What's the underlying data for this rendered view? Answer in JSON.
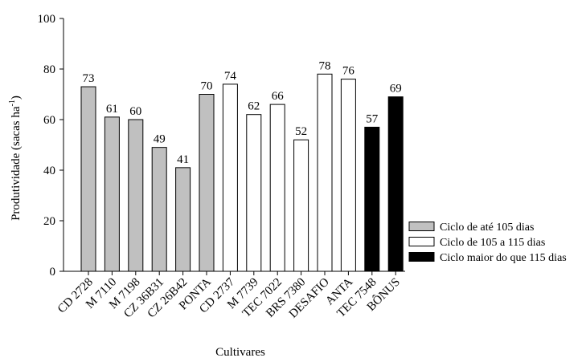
{
  "chart_data": {
    "type": "bar",
    "xlabel": "Cultivares",
    "ylabel": "Produtividade (sacas ha",
    "ylabel_sup": "-1",
    "ylabel_close": ")",
    "ylim": [
      0,
      100
    ],
    "yticks": [
      "0",
      "20",
      "40",
      "60",
      "80",
      "100"
    ],
    "categories": [
      "CD 2728",
      "M 7110",
      "M 7198",
      "CZ 36B31",
      "CZ 26B42",
      "PONTA",
      "CD 2737",
      "M 7739",
      "TEC 7022",
      "BRS 7380",
      "DESAFIO",
      "ANTA",
      "TEC 7548",
      "BÔNUS"
    ],
    "values": [
      73,
      61,
      60,
      49,
      41,
      70,
      74,
      62,
      66,
      52,
      78,
      76,
      57,
      69
    ],
    "data_labels": [
      "73",
      "61",
      "60",
      "49",
      "41",
      "70",
      "74",
      "62",
      "66",
      "52",
      "78",
      "76",
      "57",
      "69"
    ],
    "groups": [
      0,
      0,
      0,
      0,
      0,
      0,
      1,
      1,
      1,
      1,
      1,
      1,
      2,
      2
    ],
    "legend": [
      {
        "label": "Ciclo de até 105 dias",
        "color": "#c0c0c0"
      },
      {
        "label": "Ciclo de 105 a 115 dias",
        "color": "#ffffff"
      },
      {
        "label": "Ciclo maior do que 115 dias",
        "color": "#000000"
      }
    ],
    "legend_position": "bottom-right",
    "grid": false
  }
}
